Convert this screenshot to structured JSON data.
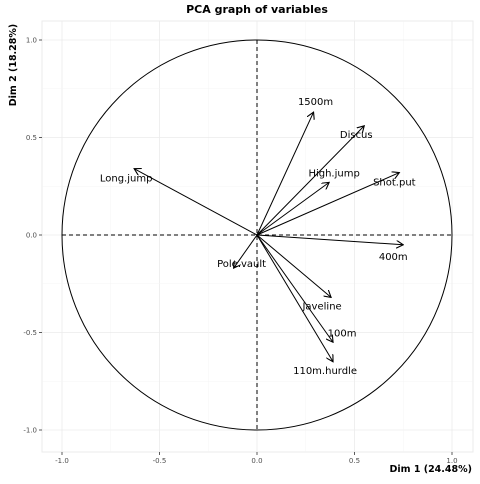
{
  "chart_data": {
    "type": "scatter",
    "title": "PCA graph of variables",
    "xlabel": "Dim 1 (24.48%)",
    "ylabel": "Dim 2 (18.28%)",
    "xlim": [
      -1.05,
      1.05
    ],
    "ylim": [
      -1.05,
      1.05
    ],
    "xticks": [
      -1.0,
      -0.5,
      0.0,
      0.5,
      1.0
    ],
    "yticks": [
      -1.0,
      -0.5,
      0.0,
      0.5,
      1.0
    ],
    "xtick_labels": [
      "-1.0",
      "-0.5",
      "0.0",
      "0.5",
      "1.0"
    ],
    "ytick_labels": [
      "-1.0",
      "-0.5",
      "0.0",
      "0.5",
      "1.0"
    ],
    "grid": true,
    "correlation_circle": true,
    "variables": [
      {
        "name": "1500m",
        "x": 0.29,
        "y": 0.63
      },
      {
        "name": "Discus",
        "x": 0.55,
        "y": 0.56
      },
      {
        "name": "High.jump",
        "x": 0.37,
        "y": 0.27
      },
      {
        "name": "Shot.put",
        "x": 0.73,
        "y": 0.32
      },
      {
        "name": "Long.jump",
        "x": -0.63,
        "y": 0.34
      },
      {
        "name": "400m",
        "x": 0.75,
        "y": -0.05
      },
      {
        "name": "Pole.vault",
        "x": -0.12,
        "y": -0.17
      },
      {
        "name": "Javeline",
        "x": 0.38,
        "y": -0.32
      },
      {
        "name": "100m",
        "x": 0.39,
        "y": -0.55
      },
      {
        "name": "110m.hurdle",
        "x": 0.39,
        "y": -0.65
      }
    ]
  }
}
